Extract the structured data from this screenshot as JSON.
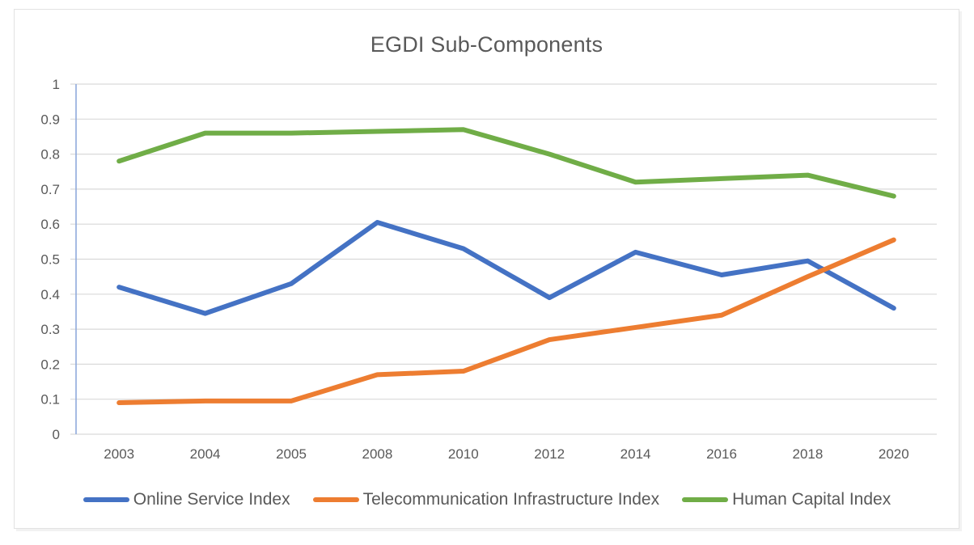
{
  "frame": {
    "background": "#ffffff",
    "border_color": "#e2e2e2"
  },
  "chart_data": {
    "type": "line",
    "title": "EGDI Sub-Components",
    "title_color": "#595959",
    "categories": [
      "2003",
      "2004",
      "2005",
      "2008",
      "2010",
      "2012",
      "2014",
      "2016",
      "2018",
      "2020"
    ],
    "series": [
      {
        "name": "Online Service Index",
        "color": "#4472C4",
        "values": [
          0.42,
          0.345,
          0.43,
          0.605,
          0.53,
          0.39,
          0.52,
          0.455,
          0.495,
          0.36
        ]
      },
      {
        "name": "Telecommunication Infrastructure Index",
        "color": "#ED7D31",
        "values": [
          0.09,
          0.095,
          0.095,
          0.17,
          0.18,
          0.27,
          0.305,
          0.34,
          0.45,
          0.555
        ]
      },
      {
        "name": "Human Capital Index",
        "color": "#70AD47",
        "values": [
          0.78,
          0.86,
          0.86,
          0.865,
          0.87,
          0.8,
          0.72,
          0.73,
          0.74,
          0.68
        ]
      }
    ],
    "xlabel": "",
    "ylabel": "",
    "ylim": [
      0,
      1
    ],
    "ytick_step": 0.1,
    "ytick_labels": [
      "0",
      "0.1",
      "0.2",
      "0.3",
      "0.4",
      "0.5",
      "0.6",
      "0.7",
      "0.8",
      "0.9",
      "1"
    ],
    "grid": true,
    "gridline_color": "#D9D9D9",
    "axis_line_color": "#8FAADC",
    "tick_label_color": "#595959",
    "line_width": 6,
    "legend_position": "bottom"
  }
}
